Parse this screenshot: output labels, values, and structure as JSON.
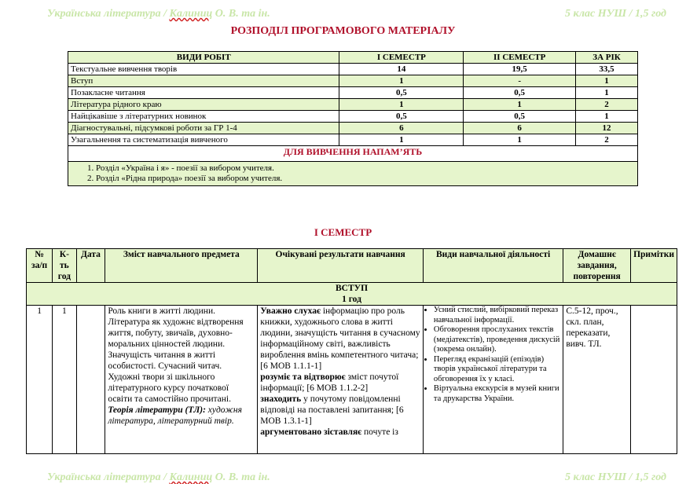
{
  "header": {
    "left_prefix": "Українська література / ",
    "left_author": "Калиниц",
    "left_suffix": " О. В.  та ін.",
    "right": "5 клас НУШ / 1,5 год"
  },
  "title": "РОЗПОДІЛ ПРОГРАМОВОГО МАТЕРІАЛУ",
  "summary": {
    "columns": [
      "ВИДИ РОБІТ",
      "І СЕМЕСТР",
      "ІІ СЕМЕСТР",
      "ЗА РІК"
    ],
    "rows": [
      [
        "Текстуальне вивчення творів",
        "14",
        "19,5",
        "33,5"
      ],
      [
        "Вступ",
        "1",
        "-",
        "1"
      ],
      [
        "Позакласне читання",
        "0,5",
        "0,5",
        "1"
      ],
      [
        "Література рідного краю",
        "1",
        "1",
        "2"
      ],
      [
        "Найцікавіше з літературних новинок",
        "0,5",
        "0,5",
        "1"
      ],
      [
        "Діагностувальні, підсумкові роботи за ГР 1-4",
        "6",
        "6",
        "12"
      ],
      [
        "Узагальнення та систематизація вивченого",
        "1",
        "1",
        "2"
      ]
    ],
    "memo_title": "ДЛЯ ВИВЧЕННЯ НАПАМ’ЯТЬ",
    "memo_items": [
      "Розділ «Україна і я» - поезії за вибором учителя.",
      "Розділ «Рідна природа» поезії за вибором учителя."
    ]
  },
  "semester_title": "І СЕМЕСТР",
  "plan": {
    "columns": [
      "№ за/п",
      "К-ть год",
      "Дата",
      "Зміст навчального предмета",
      "Очікувані результати навчання",
      "Види навчальної діяльності",
      "Домашнє завдання, повторення",
      "Примітки"
    ],
    "section": {
      "title": "ВСТУП",
      "hours": "1 год"
    },
    "row": {
      "num": "1",
      "hours": "1",
      "date": "",
      "content": "Роль книги в житті людини. Література як художнє відтворення життя, побуту, звичаїв, духовно-моральних цінностей людини. Значущість читання в житті особистості. Сучасний читач. Художні твори зі шкільного літературного курсу початкової освіти та самостійно прочитані.",
      "theory_label": "Теорія літератури (ТЛ):",
      "theory_text": " художня література, літературний твір.",
      "results": [
        {
          "b": "Уважно слухає",
          "t": " інформацію про роль книжки, художнього слова в житті людини, значущість читання в сучасному інформаційному світі, важливість вироблення вмінь компетентного читача; [6 МОВ 1.1.1-1]"
        },
        {
          "b": "розуміє та відтворює",
          "t": " зміст почутої інформації; [6 МОВ 1.1.2-2]"
        },
        {
          "b": "знаходить",
          "t": " у почутому повідомленні відповіді на поставлені запитання; [6 МОВ 1.3.1-1]"
        },
        {
          "b": "аргументовано зіставляє",
          "t": " почуте із"
        }
      ],
      "activities": [
        "Усний стислий, вибірковий переказ навчальної інформації.",
        "Обговорення прослуханих текстів (медіатекстів), проведення дискусій (зокрема онлайн).",
        "Перегляд екранізацій (епізодів) творів української літератури та обговорення їх у класі.",
        "Віртуальна екскурсія в музей книги та друкарства України."
      ],
      "homework": "С.5-12, проч., скл. план, переказати, вивч. ТЛ.",
      "notes": ""
    }
  }
}
